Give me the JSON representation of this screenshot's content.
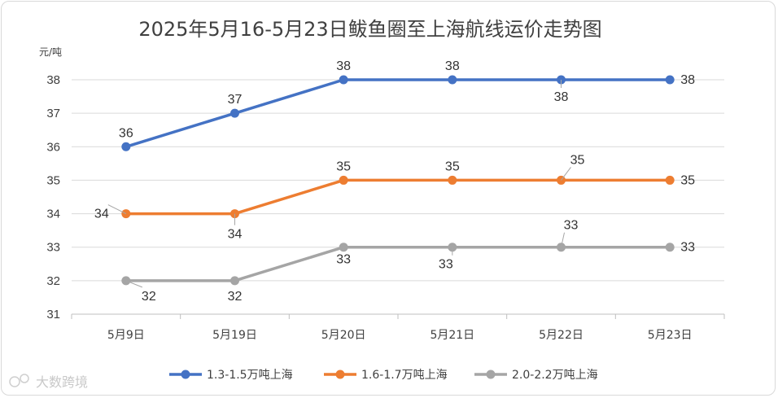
{
  "watermark": "大数跨境",
  "chart_data": {
    "type": "line",
    "title": "2025年5月16-5月23日鲅鱼圈至上海航线运价走势图",
    "ylabel": "元/吨",
    "xlabel": "",
    "categories": [
      "5月9日",
      "5月19日",
      "5月20日",
      "5月21日",
      "5月22日",
      "5月23日"
    ],
    "ylim": [
      31,
      38
    ],
    "yticks": [
      31,
      32,
      33,
      34,
      35,
      36,
      37,
      38
    ],
    "grid": true,
    "legend_position": "bottom",
    "series": [
      {
        "name": "1.3-1.5万吨上海",
        "color": "#4472c4",
        "values": [
          36,
          37,
          38,
          38,
          38,
          38
        ]
      },
      {
        "name": "1.6-1.7万吨上海",
        "color": "#ed7d31",
        "values": [
          34,
          34,
          35,
          35,
          35,
          35
        ]
      },
      {
        "name": "2.0-2.2万吨上海",
        "color": "#a5a5a5",
        "values": [
          32,
          32,
          33,
          33,
          33,
          33
        ]
      }
    ]
  }
}
